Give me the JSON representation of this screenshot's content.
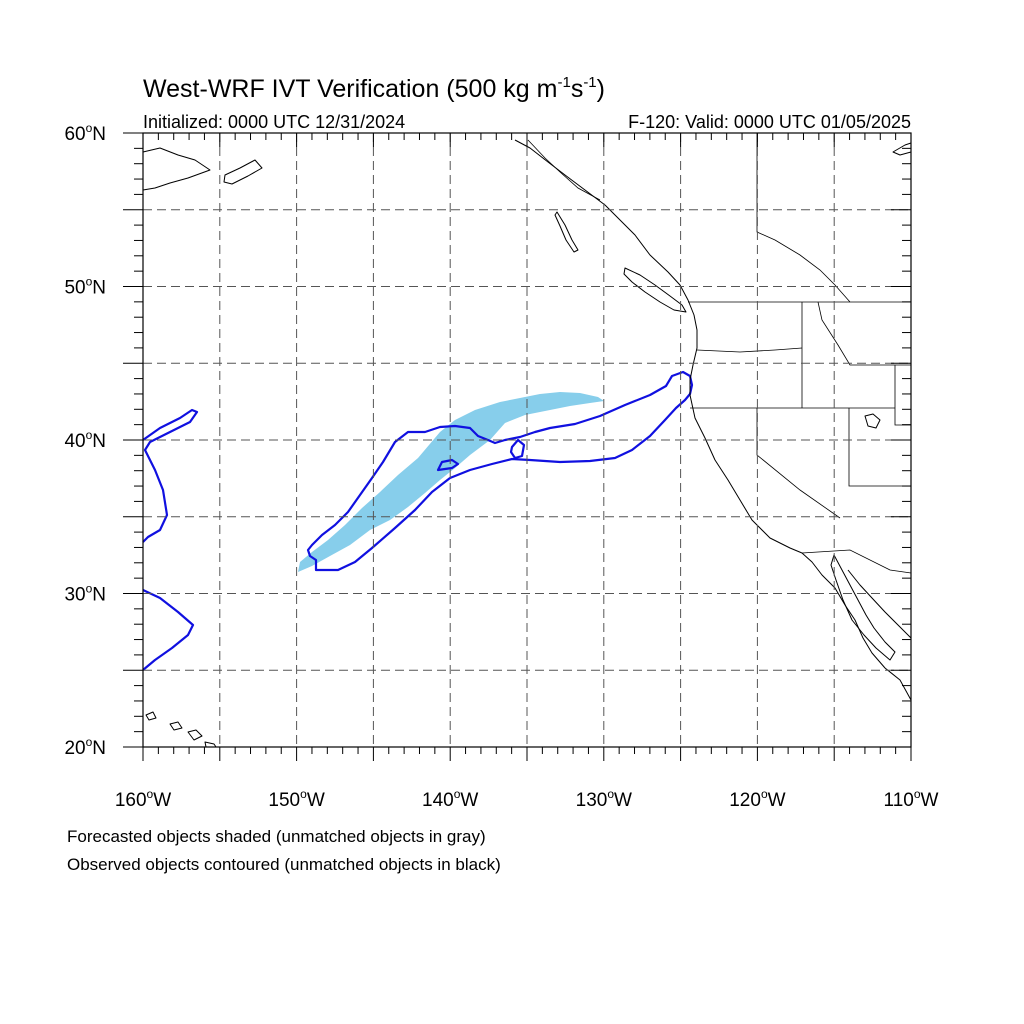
{
  "map": {
    "title_main": "West-WRF IVT Verification (500 kg m",
    "title_exp1": "-1",
    "title_mid": "s",
    "title_exp2": "-1",
    "title_end": ")",
    "left_subtitle": "Initialized: 0000 UTC 12/31/2024",
    "right_subtitle": "F-120: Valid: 0000 UTC 01/05/2025",
    "projection": "cylindrical-equidistant",
    "extent": {
      "lon_min": -160,
      "lon_max": -110,
      "lat_min": 20,
      "lat_max": 60
    },
    "grid": {
      "visible": true,
      "style": "dashed",
      "lon_step": 5,
      "lat_step": 5
    },
    "lat_labels": [
      {
        "lat": 60,
        "deg": "60",
        "hemi": "N"
      },
      {
        "lat": 50,
        "deg": "50",
        "hemi": "N"
      },
      {
        "lat": 40,
        "deg": "40",
        "hemi": "N"
      },
      {
        "lat": 30,
        "deg": "30",
        "hemi": "N"
      },
      {
        "lat": 20,
        "deg": "20",
        "hemi": "N"
      }
    ],
    "lon_labels": [
      {
        "lon": -160,
        "deg": "160",
        "hemi": "W"
      },
      {
        "lon": -150,
        "deg": "150",
        "hemi": "W"
      },
      {
        "lon": -140,
        "deg": "140",
        "hemi": "W"
      },
      {
        "lon": -130,
        "deg": "130",
        "hemi": "W"
      },
      {
        "lon": -120,
        "deg": "120",
        "hemi": "W"
      },
      {
        "lon": -110,
        "deg": "110",
        "hemi": "W"
      }
    ],
    "colors": {
      "forecast_fill": "#87CEEB",
      "observed_contour": "#1010E0",
      "coastline": "#000000",
      "grid": "#555555"
    },
    "caption_line1": "Forecasted objects shaded (unmatched objects in gray)",
    "caption_line2": "Observed objects contoured (unmatched objects in black)"
  }
}
